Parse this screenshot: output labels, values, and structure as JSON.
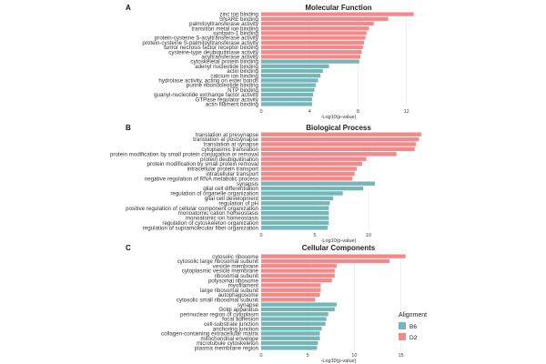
{
  "colors": {
    "B6": "#75b7b8",
    "D2": "#f4898a",
    "grid": "#e6e6e6"
  },
  "legend": {
    "title": "Alignment",
    "items": [
      {
        "name": "B6"
      },
      {
        "name": "D2"
      }
    ]
  },
  "chart_data": [
    {
      "type": "bar",
      "orientation": "horizontal",
      "panel": "A",
      "title": "Molecular Function",
      "xlabel": "-Log10(p-value)",
      "xlim": [
        0,
        13
      ],
      "xticks": [
        0,
        4,
        8,
        12
      ],
      "categories": [
        "zinc ion binding",
        "SNARE binding",
        "palmitoyltransferase activity",
        "transition metal ion binding",
        "syntaxin-1 binding",
        "protein-cysteine S-acyltransferase activity",
        "protein-cysteine S-palmitoyltransferase activity",
        "tumor necrosis factor receptor binding",
        "cysteine-type deubiquitinase activity",
        "acyltransferase activity",
        "cytoskeletal protein binding",
        "adenyl nucleotide binding",
        "actin binding",
        "calcium ion binding",
        "hydrolase activity, acting on ester bonds",
        "purine ribonucleotide binding",
        "NTP binding",
        "guanyl-nucleotide exchange factor activity",
        "GTPase regulator activity",
        "actin filament binding"
      ],
      "groups": [
        "D2",
        "D2",
        "D2",
        "D2",
        "D2",
        "D2",
        "D2",
        "D2",
        "D2",
        "D2",
        "B6",
        "B6",
        "B6",
        "B6",
        "B6",
        "B6",
        "B6",
        "B6",
        "B6",
        "B6"
      ],
      "values": [
        12.6,
        10.5,
        9.3,
        8.9,
        8.7,
        8.6,
        8.5,
        8.4,
        8.3,
        8.2,
        8.1,
        5.6,
        5.1,
        4.9,
        4.7,
        4.5,
        4.4,
        4.3,
        4.2,
        4.2
      ]
    },
    {
      "type": "bar",
      "orientation": "horizontal",
      "panel": "B",
      "title": "Biological Process",
      "xlabel": "-Log10(p-value)",
      "xlim": [
        0,
        15
      ],
      "xticks": [
        0,
        5,
        10
      ],
      "categories": [
        "translation at presynapse",
        "translation at postsynapse",
        "translation at synapse",
        "cytoplasmic translation",
        "protein modification by small protein conjugation or removal",
        "protein deubiquitination",
        "protein modification by small protein removal",
        "intracellular protein transport",
        "intracellular transport",
        "negative regulation of RNA metabolic process",
        "synapsis",
        "glial cell differentiation",
        "regulation of organelle organization",
        "glial cell development",
        "regulation of pH",
        "positive regulation of cellular component organization",
        "monoatomic cation homeostasis",
        "monoatomic ion homeostasis",
        "regulation of cytoskeleton organization",
        "regulation of supramolecular fiber organization"
      ],
      "groups": [
        "D2",
        "D2",
        "D2",
        "D2",
        "D2",
        "D2",
        "D2",
        "D2",
        "D2",
        "D2",
        "B6",
        "B6",
        "B6",
        "B6",
        "B6",
        "B6",
        "B6",
        "B6",
        "B6",
        "B6"
      ],
      "values": [
        14.9,
        14.7,
        14.4,
        14.3,
        12.6,
        9.8,
        9.4,
        8.9,
        8.7,
        8.5,
        10.6,
        9.5,
        7.6,
        6.7,
        6.4,
        6.3,
        6.3,
        6.3,
        6.3,
        6.2
      ]
    },
    {
      "type": "bar",
      "orientation": "horizontal",
      "panel": "C",
      "title": "Cellular Components",
      "xlabel": "-Log10(p-value)",
      "xlim": [
        0,
        17
      ],
      "xticks": [
        0,
        5,
        10,
        15
      ],
      "categories": [
        "cytosolic ribosome",
        "cytosolic large ribosomal subunit",
        "vesicle membrane",
        "cytoplasmic vesicle membrane",
        "ribosomal subunit",
        "polysomal ribosome",
        "myofilament",
        "large ribosomal subunit",
        "autophagosome",
        "cytosolic small ribosomal subunit",
        "synapse",
        "Golgi apparatus",
        "perinuclear region of cytoplasm",
        "focal adhesion",
        "cell-substrate junction",
        "anchoring junction",
        "collagen-containing extracellular matrix",
        "mitochondrial envelope",
        "microtubule cytoskeleton",
        "plasma membrane region"
      ],
      "groups": [
        "D2",
        "D2",
        "D2",
        "D2",
        "D2",
        "D2",
        "D2",
        "D2",
        "D2",
        "D2",
        "B6",
        "B6",
        "B6",
        "B6",
        "B6",
        "B6",
        "B6",
        "B6",
        "B6",
        "B6"
      ],
      "values": [
        15.5,
        13.8,
        8.1,
        7.9,
        7.9,
        7.6,
        6.4,
        6.4,
        6.3,
        5.8,
        8.1,
        7.9,
        7.2,
        7.0,
        6.9,
        6.5,
        6.3,
        6.3,
        6.1,
        6.0
      ]
    }
  ]
}
